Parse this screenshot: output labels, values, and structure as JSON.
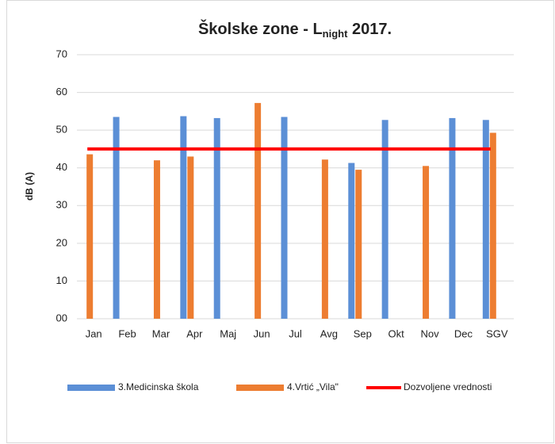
{
  "chart_data": {
    "type": "bar",
    "title": {
      "text": "Školske zone - L",
      "subscript": "night",
      "suffix": " 2017."
    },
    "y_label": "dB (A)",
    "categories": [
      "Jan",
      "Feb",
      "Mar",
      "Apr",
      "Maj",
      "Jun",
      "Jul",
      "Avg",
      "Sep",
      "Okt",
      "Nov",
      "Dec",
      "SGV"
    ],
    "series": [
      {
        "name": "3.Medicinska škola",
        "color": "#5b8fd6",
        "type": "bar",
        "values": [
          null,
          53.5,
          null,
          53.7,
          53.2,
          null,
          53.5,
          null,
          41.3,
          52.7,
          null,
          53.2,
          52.7
        ]
      },
      {
        "name": "4.Vrtić „Vila\"",
        "color": "#ed7d31",
        "type": "bar",
        "values": [
          43.6,
          null,
          42,
          43,
          null,
          57.2,
          null,
          42.2,
          39.5,
          null,
          40.5,
          null,
          49.3
        ]
      },
      {
        "name": "Dozvoljene vrednosti",
        "color": "#ff0000",
        "type": "line",
        "values": [
          45,
          45,
          45,
          45,
          45,
          45,
          45,
          45,
          45,
          45,
          45,
          45,
          45
        ]
      }
    ],
    "ylim": [
      0,
      70
    ],
    "yticks": [
      {
        "value": 0,
        "label": "00"
      },
      10,
      20,
      30,
      40,
      50,
      60,
      70
    ],
    "grid": true,
    "legend": "bottom"
  }
}
